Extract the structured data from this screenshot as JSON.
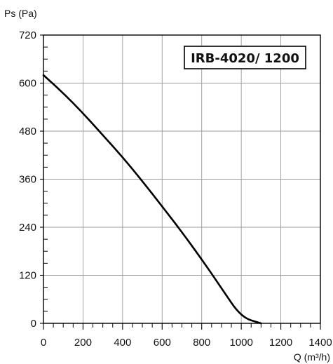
{
  "chart_data": {
    "type": "line",
    "title": "",
    "xlabel": "Q (m³/h)",
    "ylabel": "Ps (Pa)",
    "xlim": [
      0,
      1400
    ],
    "ylim": [
      0,
      720
    ],
    "x_ticks": [
      "0",
      "200",
      "400",
      "600",
      "800",
      "1000",
      "1200",
      "1400"
    ],
    "y_ticks": [
      "0",
      "120",
      "240",
      "360",
      "480",
      "600",
      "720"
    ],
    "x_minor_step": 50,
    "y_minor_step": 30,
    "grid": true,
    "annotation": "IRB-4020/ 1200",
    "annotation_position": "top-right",
    "series": [
      {
        "name": "",
        "color": "#000000",
        "x": [
          0,
          100,
          200,
          300,
          400,
          500,
          600,
          700,
          800,
          900,
          1000,
          1100,
          1120
        ],
        "y": [
          620,
          575,
          525,
          470,
          415,
          355,
          292,
          228,
          160,
          88,
          15,
          0,
          0
        ]
      }
    ]
  }
}
